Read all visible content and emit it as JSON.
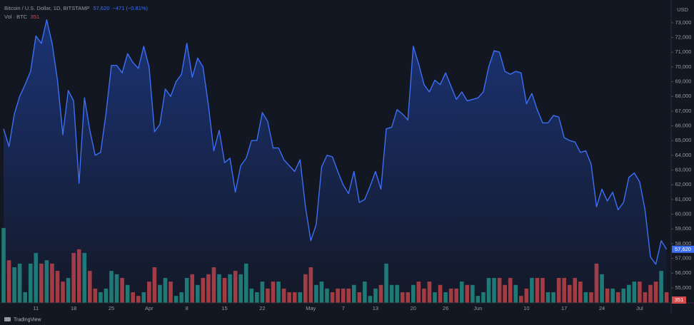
{
  "chart_data": {
    "type": "line",
    "unit": "USD",
    "price_label": "57,620",
    "change_label": "−471 (−0.81%)",
    "footer": "TradingView",
    "categories": [
      null,
      null,
      null,
      null,
      null,
      null,
      "11",
      null,
      null,
      null,
      null,
      null,
      null,
      "18",
      null,
      null,
      null,
      null,
      null,
      null,
      "25",
      null,
      null,
      null,
      null,
      null,
      null,
      "Apr",
      null,
      null,
      null,
      null,
      null,
      null,
      "8",
      null,
      null,
      null,
      null,
      null,
      null,
      "15",
      null,
      null,
      null,
      null,
      null,
      null,
      "22",
      null,
      null,
      null,
      null,
      null,
      null,
      null,
      null,
      "May",
      null,
      null,
      null,
      null,
      null,
      "7",
      null,
      null,
      null,
      null,
      null,
      "13",
      null,
      null,
      null,
      null,
      null,
      null,
      "20",
      null,
      null,
      null,
      null,
      null,
      "26",
      null,
      null,
      null,
      null,
      null,
      "Jun",
      null,
      null,
      null,
      null,
      null,
      null,
      null,
      null,
      "10",
      null,
      null,
      null,
      null,
      null,
      null,
      "17",
      null,
      null,
      null,
      null,
      null,
      null,
      "24",
      null,
      null,
      null,
      null,
      null,
      null,
      "Jul",
      null,
      null,
      null,
      null,
      null
    ],
    "series": [
      {
        "name": "Bitcoin / U.S. Dollar, 1D, BITSTAMP",
        "color": "#3d6ff5",
        "values": [
          65800,
          64600,
          66800,
          68000,
          68800,
          69700,
          72100,
          71600,
          73200,
          71600,
          69100,
          65400,
          68400,
          67700,
          62100,
          67900,
          65700,
          64000,
          64200,
          66800,
          70100,
          70100,
          69600,
          70900,
          70300,
          69900,
          71400,
          70000,
          65600,
          66100,
          68500,
          68000,
          69000,
          69500,
          71600,
          69300,
          70600,
          70000,
          67400,
          64300,
          65700,
          63500,
          63800,
          61500,
          63300,
          63800,
          65000,
          65000,
          66900,
          66300,
          64500,
          64500,
          63700,
          63300,
          62900,
          63700,
          60500,
          58200,
          59300,
          63200,
          64000,
          63900,
          62900,
          62000,
          61400,
          62900,
          60800,
          61000,
          61900,
          62900,
          61700,
          65800,
          65900,
          67100,
          66800,
          66400,
          71400,
          70200,
          68800,
          68300,
          69100,
          68800,
          69600,
          68700,
          67800,
          68300,
          67700,
          67800,
          67900,
          68300,
          70000,
          71100,
          71000,
          69700,
          69500,
          69700,
          69600,
          67500,
          68200,
          67100,
          66200,
          66200,
          66700,
          66600,
          65200,
          65000,
          64900,
          64200,
          64300,
          63400,
          60500,
          61700,
          60900,
          61500,
          60300,
          60800,
          62500,
          62800,
          62200,
          60300,
          57100,
          56600,
          58200,
          57620
        ]
      },
      {
        "name": "Vol · BTC",
        "type": "bar",
        "axis": "y2",
        "up_color": "#1f7a70",
        "down_color": "#a83a3c",
        "values": [
          2460,
          1400,
          1170,
          1290,
          350,
          1290,
          1640,
          1290,
          1400,
          1290,
          1050,
          700,
          820,
          1640,
          1760,
          1640,
          1050,
          470,
          350,
          470,
          1050,
          940,
          820,
          590,
          350,
          230,
          350,
          700,
          1170,
          590,
          820,
          700,
          230,
          350,
          820,
          940,
          590,
          820,
          940,
          1170,
          940,
          820,
          940,
          1050,
          940,
          1290,
          470,
          350,
          700,
          470,
          700,
          700,
          470,
          350,
          350,
          350,
          940,
          1170,
          590,
          700,
          470,
          350,
          470,
          470,
          470,
          590,
          350,
          700,
          230,
          470,
          590,
          1290,
          590,
          590,
          350,
          350,
          590,
          700,
          470,
          700,
          350,
          590,
          350,
          470,
          470,
          700,
          590,
          590,
          230,
          350,
          820,
          820,
          820,
          590,
          820,
          590,
          230,
          470,
          820,
          820,
          820,
          350,
          350,
          820,
          820,
          590,
          820,
          700,
          350,
          350,
          1290,
          940,
          470,
          470,
          350,
          470,
          590,
          700,
          700,
          350,
          590,
          700,
          1050,
          351
        ]
      }
    ],
    "ylim": [
      53980,
      74060
    ],
    "yticks": [
      {
        "value": 55000,
        "label": "55,000"
      },
      {
        "value": 56000,
        "label": "56,000"
      },
      {
        "value": 57000,
        "label": "57,000"
      },
      {
        "value": 58000,
        "label": "58,000"
      },
      {
        "value": 59000,
        "label": "59,000"
      },
      {
        "value": 60000,
        "label": "60,000"
      },
      {
        "value": 61000,
        "label": "61,000"
      },
      {
        "value": 62000,
        "label": "62,000"
      },
      {
        "value": 63000,
        "label": "63,000"
      },
      {
        "value": 64000,
        "label": "64,000"
      },
      {
        "value": 65000,
        "label": "65,000"
      },
      {
        "value": 66000,
        "label": "66,000"
      },
      {
        "value": 67000,
        "label": "67,000"
      },
      {
        "value": 68000,
        "label": "68,000"
      },
      {
        "value": 69000,
        "label": "69,000"
      },
      {
        "value": 70000,
        "label": "70,000"
      },
      {
        "value": 71000,
        "label": "71,000"
      },
      {
        "value": 72000,
        "label": "72,000"
      },
      {
        "value": 73000,
        "label": "73,000"
      }
    ],
    "y2lim": [
      0,
      4000
    ],
    "grid": false
  }
}
